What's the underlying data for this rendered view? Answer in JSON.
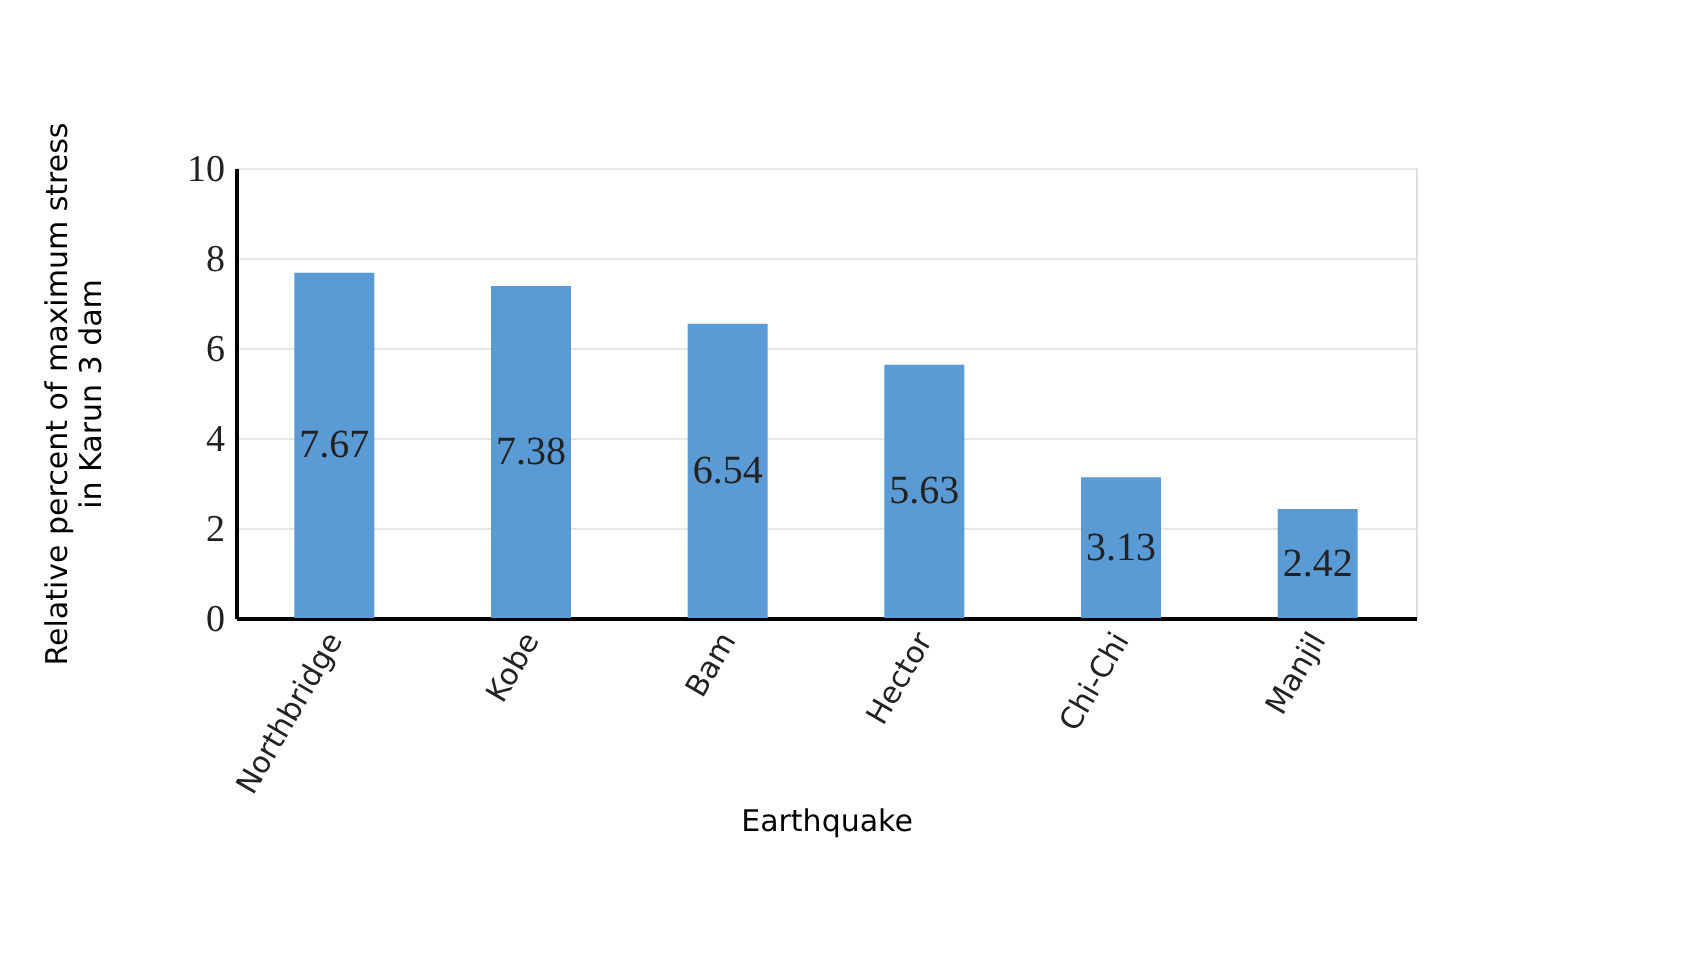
{
  "chart_data": {
    "type": "bar",
    "categories": [
      "Northbridge",
      "Kobe",
      "Bam",
      "Hector",
      "Chi-Chi",
      "Manjil"
    ],
    "values": [
      7.67,
      7.38,
      6.54,
      5.63,
      3.13,
      2.42
    ],
    "color": "#5b9bd5",
    "xlabel": "Earthquake",
    "ylabel": "Relative percent of maximum stress in Karun 3 dam",
    "ylim": [
      0,
      10
    ],
    "yticks": [
      0,
      2,
      4,
      6,
      8,
      10
    ],
    "grid": "y",
    "data_labels": true
  }
}
